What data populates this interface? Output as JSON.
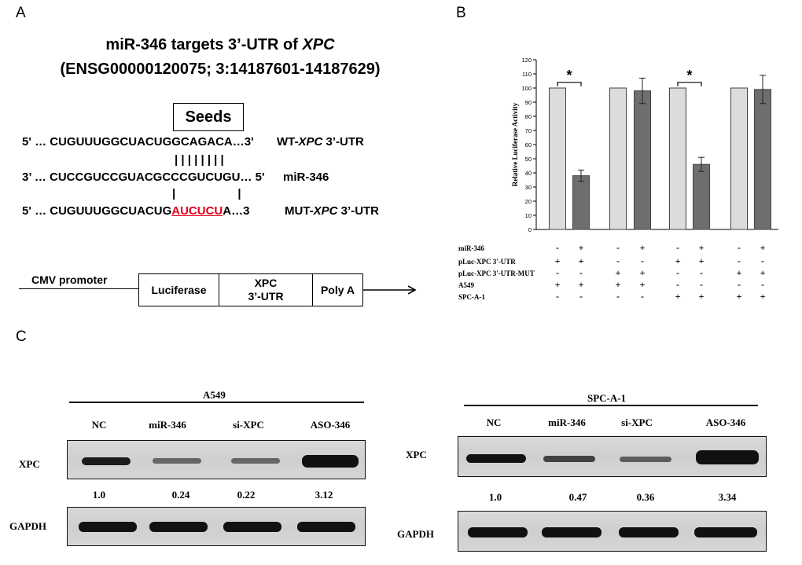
{
  "panelA": {
    "letter": "A",
    "title_line1_prefix": "miR-346 targets 3’-UTR of ",
    "title_line1_gene": "XPC",
    "title_line2": "(ENSG00000120075; 3:14187601-14187629)",
    "seeds_label": "Seeds",
    "wt_seq": "5'  … CUGUUUGGCUACUGGCAGACA…3'",
    "wt_label_prefix": "WT-",
    "wt_label_gene": "XPC",
    "wt_label_suffix": " 3’-UTR",
    "pairing_wt": "| | | | | | | |",
    "mir_seq": "3’  … CUCCGUCCGUACGCCCGUCUGU… 5'",
    "mir_label": "miR-346",
    "pairing_mut": "|                   |",
    "mut_seq_pre": "5'  … CUGUUUGGCUACUG",
    "mut_seq_red": "AUCUCU",
    "mut_seq_post": "A…3",
    "mut_label_prefix": "MUT-",
    "mut_label_gene": "XPC",
    "mut_label_suffix": " 3’-UTR",
    "construct": {
      "promoter": "CMV promoter",
      "box1": "Luciferase",
      "box2_line1": "XPC",
      "box2_line2": "3’-UTR",
      "box3": "Poly A"
    }
  },
  "panelB": {
    "letter": "B",
    "significance_mark": "*",
    "conditions": [
      {
        "label": "miR-346",
        "marks": [
          "-",
          "+",
          "-",
          "+",
          "-",
          "+",
          "-",
          "+"
        ]
      },
      {
        "label": "pLuc-XPC 3'-UTR",
        "marks": [
          "+",
          "+",
          "-",
          "-",
          "+",
          "+",
          "-",
          "-"
        ]
      },
      {
        "label": "pLuc-XPC 3'-UTR-MUT",
        "marks": [
          "-",
          "-",
          "+",
          "+",
          "-",
          "-",
          "+",
          "+"
        ]
      },
      {
        "label": "A549",
        "marks": [
          "+",
          "+",
          "+",
          "+",
          "-",
          "-",
          "-",
          "-"
        ]
      },
      {
        "label": "SPC-A-1",
        "marks": [
          "-",
          "-",
          "-",
          "-",
          "+",
          "+",
          "+",
          "+"
        ]
      }
    ]
  },
  "chart_data": {
    "type": "bar",
    "ylabel": "Relative Luciferase Activity",
    "ylim": [
      0,
      120
    ],
    "yticks": [
      0,
      10,
      20,
      30,
      40,
      50,
      60,
      70,
      80,
      90,
      100,
      110,
      120
    ],
    "values": [
      100,
      38,
      100,
      98,
      100,
      46,
      100,
      99
    ],
    "errors": [
      0,
      4,
      0,
      9,
      0,
      5,
      0,
      10
    ],
    "bar_colors": [
      "#dcdcdc",
      "#6e6e6e",
      "#dcdcdc",
      "#6e6e6e",
      "#dcdcdc",
      "#6e6e6e",
      "#dcdcdc",
      "#6e6e6e"
    ],
    "significance_pairs": [
      [
        0,
        1
      ],
      [
        4,
        5
      ]
    ]
  },
  "panelC": {
    "letter": "C",
    "left": {
      "cell_line": "A549",
      "lanes": [
        "NC",
        "miR-346",
        "si-XPC",
        "ASO-346"
      ],
      "row1_label": "XPC",
      "quant": [
        "1.0",
        "0.24",
        "0.22",
        "3.12"
      ],
      "row2_label": "GAPDH"
    },
    "right": {
      "cell_line": "SPC-A-1",
      "lanes": [
        "NC",
        "miR-346",
        "si-XPC",
        "ASO-346"
      ],
      "row1_label": "XPC",
      "quant": [
        "1.0",
        "0.47",
        "0.36",
        "3.34"
      ],
      "row2_label": "GAPDH"
    }
  }
}
